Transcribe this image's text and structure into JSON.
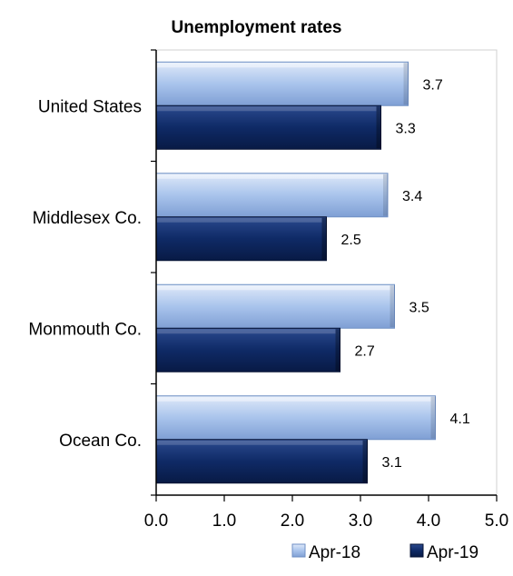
{
  "chart_data": {
    "type": "bar",
    "orientation": "horizontal",
    "title": "Unemployment rates",
    "categories": [
      "United States",
      "Middlesex Co.",
      "Monmouth Co.",
      "Ocean Co."
    ],
    "series": [
      {
        "name": "Apr-18",
        "values": [
          3.7,
          3.4,
          3.5,
          4.1
        ],
        "color": "#a9c4ec"
      },
      {
        "name": "Apr-19",
        "values": [
          3.3,
          2.5,
          2.7,
          3.1
        ],
        "color": "#0f2a66"
      }
    ],
    "xlim": [
      0,
      5
    ],
    "x_ticks": [
      "0.0",
      "1.0",
      "2.0",
      "3.0",
      "4.0",
      "5.0"
    ],
    "grid": false,
    "legend_position": "bottom-right",
    "data_labels": true
  }
}
